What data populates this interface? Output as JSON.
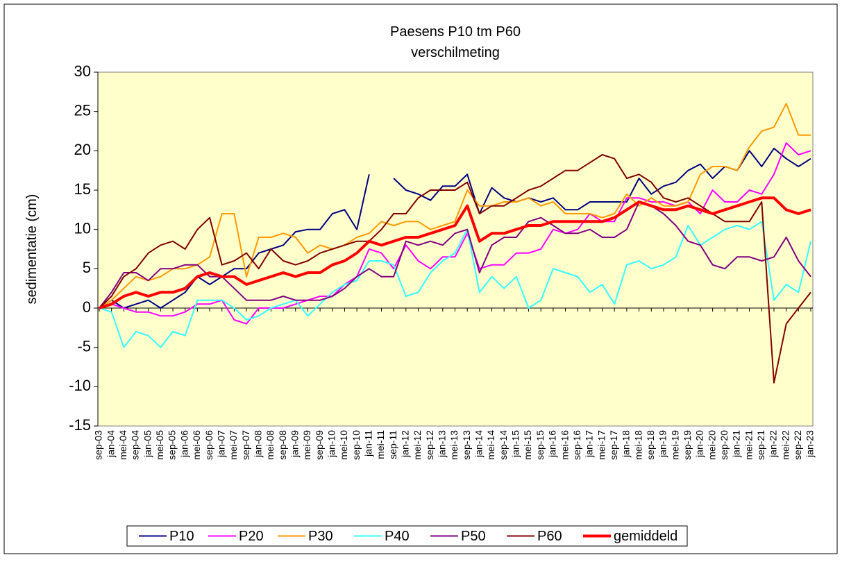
{
  "chart_data": {
    "type": "line",
    "title": "Paesens P10 tm P60",
    "subtitle": "verschilmeting",
    "y_label": "sedimentatie (cm)",
    "categories": [
      "sep-03",
      "jan-04",
      "mei-04",
      "sep-04",
      "jan-05",
      "mei-05",
      "sep-05",
      "jan-06",
      "mei-06",
      "sep-06",
      "jan-07",
      "mei-07",
      "sep-07",
      "jan-08",
      "mei-08",
      "sep-08",
      "jan-09",
      "mei-09",
      "sep-09",
      "jan-10",
      "mei-10",
      "sep-10",
      "jan-11",
      "mei-11",
      "sep-11",
      "jan-12",
      "mei-12",
      "sep-12",
      "jan-13",
      "mei-13",
      "sep-13",
      "jan-14",
      "mei-14",
      "sep-14",
      "jan-15",
      "mei-15",
      "sep-15",
      "jan-16",
      "mei-16",
      "sep-16",
      "jan-17",
      "mei-17",
      "sep-17",
      "jan-18",
      "mei-18",
      "sep-18",
      "jan-19",
      "mei-19",
      "sep-19",
      "jan-20",
      "mei-20",
      "sep-20",
      "jan-21",
      "mei-21",
      "sep-21",
      "jan-22",
      "mei-22",
      "sep-22",
      "jan-23"
    ],
    "series": [
      {
        "name": "P10",
        "color": "#000080",
        "line_width": 2,
        "values": [
          0,
          1,
          0,
          0.5,
          1,
          0,
          1,
          2,
          4,
          3,
          4,
          5,
          5,
          7,
          7.5,
          8,
          9.7,
          10,
          10,
          12,
          12.5,
          10,
          17,
          null,
          16.5,
          15,
          14.5,
          13.7,
          15.5,
          15.5,
          17,
          12,
          15.3,
          14,
          13.5,
          14,
          13.5,
          14,
          12.5,
          12.5,
          13.5,
          13.5,
          13.5,
          13.5,
          16.5,
          14.5,
          15.5,
          16,
          17.5,
          18.3,
          16.5,
          18,
          17.5,
          20,
          18,
          20.3,
          19,
          18,
          19
        ]
      },
      {
        "name": "P20",
        "color": "#ff00ff",
        "line_width": 2,
        "values": [
          0,
          0.5,
          0,
          -0.5,
          -0.5,
          -1,
          -1,
          -0.5,
          0.5,
          0.5,
          1,
          -1.5,
          -2,
          0,
          0,
          0,
          0.5,
          1,
          1.5,
          1.5,
          3,
          4,
          7.5,
          7,
          5,
          8,
          6,
          5,
          6.5,
          6.5,
          9.5,
          5,
          5.5,
          5.5,
          7,
          7,
          7.5,
          10,
          9.5,
          10,
          12,
          11,
          11,
          14,
          14,
          13.5,
          13.5,
          13,
          13.5,
          12,
          15,
          13.5,
          13.5,
          15,
          14.5,
          17,
          21,
          19.5,
          20
        ]
      },
      {
        "name": "P30",
        "color": "#ff9900",
        "line_width": 2,
        "values": [
          0,
          1,
          2.5,
          4,
          3.5,
          4,
          5,
          5,
          5.5,
          6.5,
          12,
          12,
          4,
          9,
          9,
          9.5,
          9,
          7,
          8,
          7.5,
          8,
          9,
          9.5,
          11,
          10.5,
          11,
          11,
          10,
          10.5,
          11,
          15,
          13,
          13,
          13.5,
          13.5,
          14,
          13,
          13.5,
          12,
          12,
          12,
          11.5,
          12,
          14.5,
          13,
          14,
          13,
          13,
          13.5,
          17,
          18,
          18,
          17.5,
          20.5,
          22.5,
          23,
          26,
          22,
          22
        ]
      },
      {
        "name": "P40",
        "color": "#33ffff",
        "line_width": 2,
        "values": [
          0,
          -0.5,
          -5,
          -3,
          -3.5,
          -5,
          -3,
          -3.5,
          1,
          1,
          1,
          0,
          -1.5,
          -1,
          0,
          0.5,
          1,
          -1,
          0.5,
          2,
          3,
          3.5,
          6,
          6,
          5.5,
          1.5,
          2,
          4.5,
          6,
          7,
          10,
          2,
          4,
          2.5,
          4,
          0,
          1,
          5,
          4.5,
          4,
          2,
          3,
          0.5,
          5.5,
          6,
          5,
          5.5,
          6.5,
          10.5,
          8,
          9,
          10,
          10.5,
          10,
          11,
          1,
          3,
          2,
          8.5
        ]
      },
      {
        "name": "P50",
        "color": "#800080",
        "line_width": 2,
        "values": [
          0,
          2,
          4.5,
          4.5,
          3.5,
          5,
          5,
          5.5,
          5.5,
          4,
          4,
          2.5,
          1,
          1,
          1,
          1.5,
          1,
          1,
          1,
          1.5,
          2.5,
          4,
          5,
          4,
          4,
          8.5,
          8,
          8.5,
          8,
          9.5,
          10,
          4.5,
          8,
          9,
          9,
          11,
          11.5,
          10.5,
          9.5,
          9.5,
          10,
          9,
          9,
          10,
          13.5,
          13,
          12,
          10.5,
          8.5,
          8,
          5.5,
          5,
          6.5,
          6.5,
          6,
          6.5,
          9,
          6,
          4
        ]
      },
      {
        "name": "P60",
        "color": "#800000",
        "line_width": 2,
        "values": [
          0,
          1.5,
          4,
          5,
          7,
          8,
          8.5,
          7.5,
          10,
          11.5,
          5.5,
          6,
          7,
          5,
          7.5,
          6,
          5.5,
          6,
          7,
          7.5,
          8,
          8.5,
          8.5,
          10,
          12,
          12,
          14,
          15,
          15,
          15,
          16,
          12,
          13,
          13,
          14,
          15,
          15.5,
          16.5,
          17.5,
          17.5,
          18.5,
          19.5,
          19,
          16.5,
          17,
          16,
          14,
          13.5,
          14,
          13,
          12,
          11,
          11,
          11,
          13.5,
          -9.5,
          -2,
          0,
          2
        ]
      },
      {
        "name": "gemiddeld",
        "color": "#ff0000",
        "line_width": 4,
        "values": [
          0,
          0.5,
          1.5,
          2,
          1.5,
          2,
          2,
          2.5,
          4,
          4.5,
          4,
          4,
          3,
          3.5,
          4,
          4.5,
          4,
          4.5,
          4.5,
          5.5,
          6,
          7,
          8.5,
          8,
          8.5,
          9,
          9,
          9.5,
          10,
          10.5,
          13,
          8.5,
          9.5,
          9.5,
          10,
          10.5,
          10.5,
          11,
          11,
          11,
          11,
          11,
          11.5,
          12.5,
          13.5,
          13,
          12.5,
          12.5,
          13,
          12.5,
          12,
          12.5,
          13,
          13.5,
          14,
          14,
          12.5,
          12,
          12.5
        ]
      }
    ],
    "ylim": [
      -15,
      30
    ],
    "yticks": [
      -15,
      -10,
      -5,
      0,
      5,
      10,
      15,
      20,
      25,
      30
    ],
    "grid": false,
    "legend": "bottom",
    "plot_background": "#ffffcc"
  }
}
